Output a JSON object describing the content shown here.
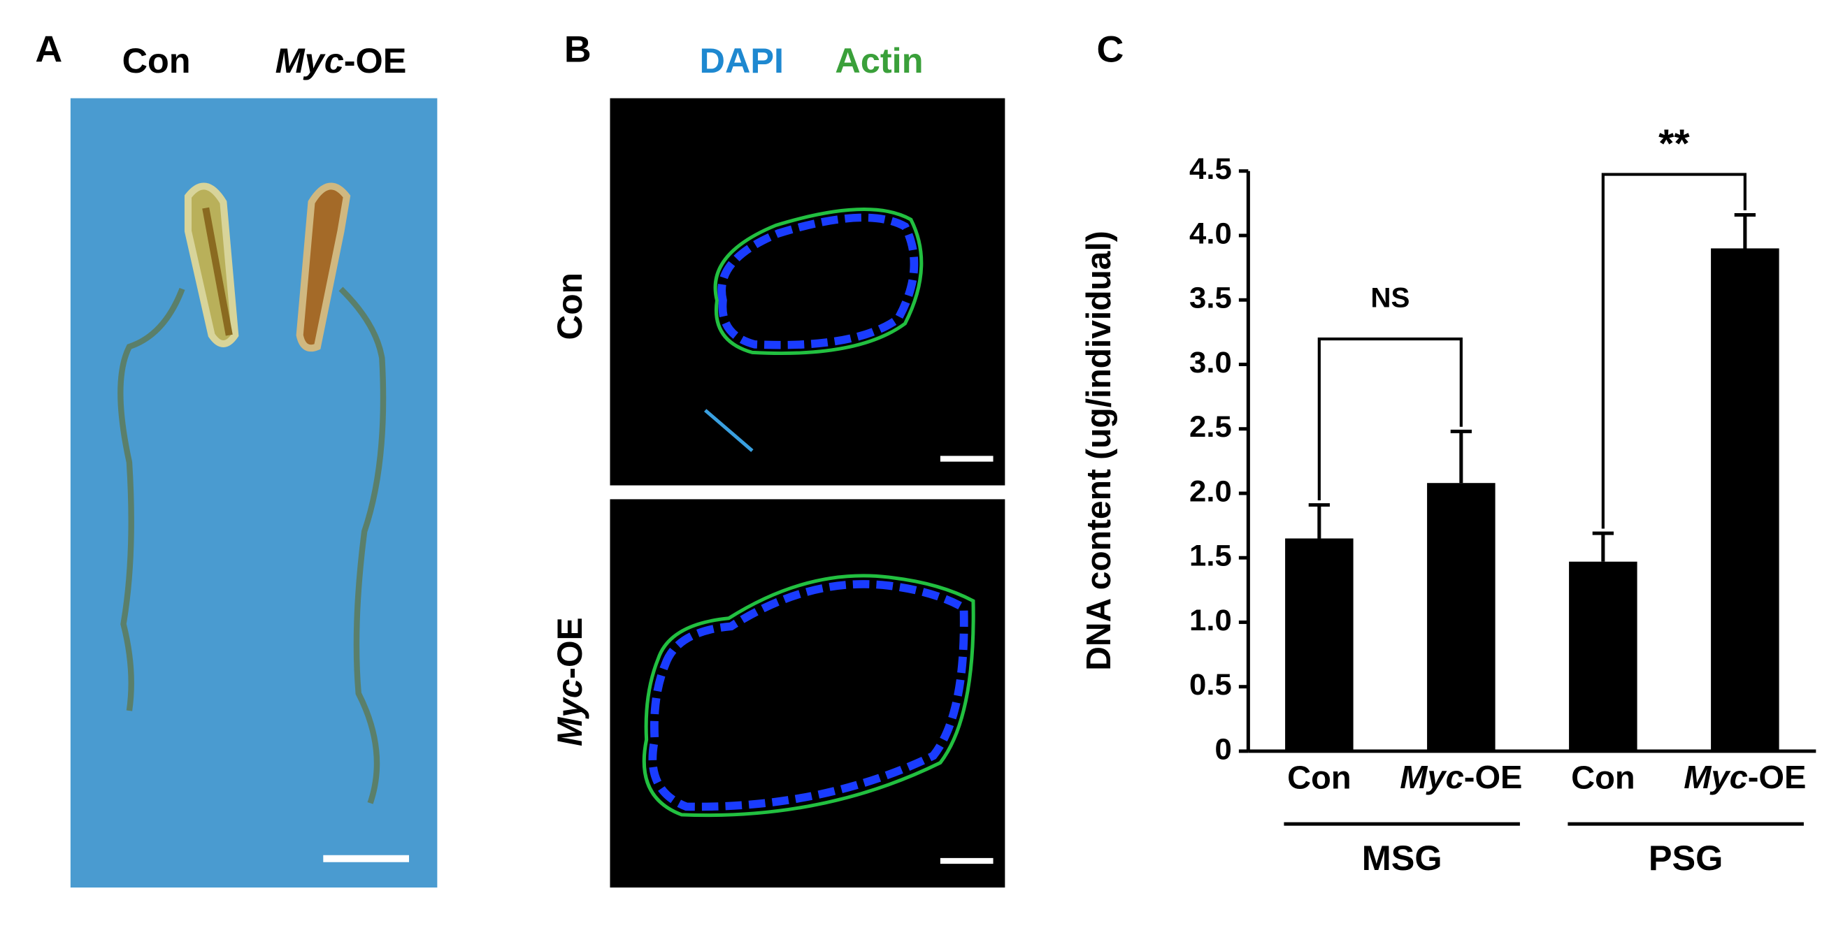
{
  "panels": {
    "a": {
      "letter": "A",
      "labels": [
        "Con",
        "Myc-OE"
      ]
    },
    "b": {
      "letter": "B",
      "stains": [
        "DAPI",
        "Actin"
      ],
      "rows": [
        "Con",
        "Myc-OE"
      ]
    },
    "c": {
      "letter": "C"
    }
  },
  "chart_data": {
    "type": "bar",
    "ylabel": "DNA content (ug/individual)",
    "categories": [
      "Con",
      "Myc-OE",
      "Con",
      "Myc-OE"
    ],
    "groups": [
      "MSG",
      "PSG"
    ],
    "values": [
      1.65,
      2.08,
      1.47,
      3.9
    ],
    "errors": [
      0.26,
      0.4,
      0.22,
      0.26
    ],
    "color": "#000000",
    "ylim": [
      0,
      4.5
    ],
    "yticks": [
      0,
      0.5,
      {
        "value": 1,
        "label": "1.0"
      },
      1.5,
      {
        "value": 2,
        "label": "2.0"
      },
      2.5,
      {
        "value": 3,
        "label": "3.0"
      },
      3.5,
      {
        "value": 4,
        "label": "4.0"
      },
      4.5
    ],
    "annotations": [
      "NS",
      "**"
    ]
  }
}
